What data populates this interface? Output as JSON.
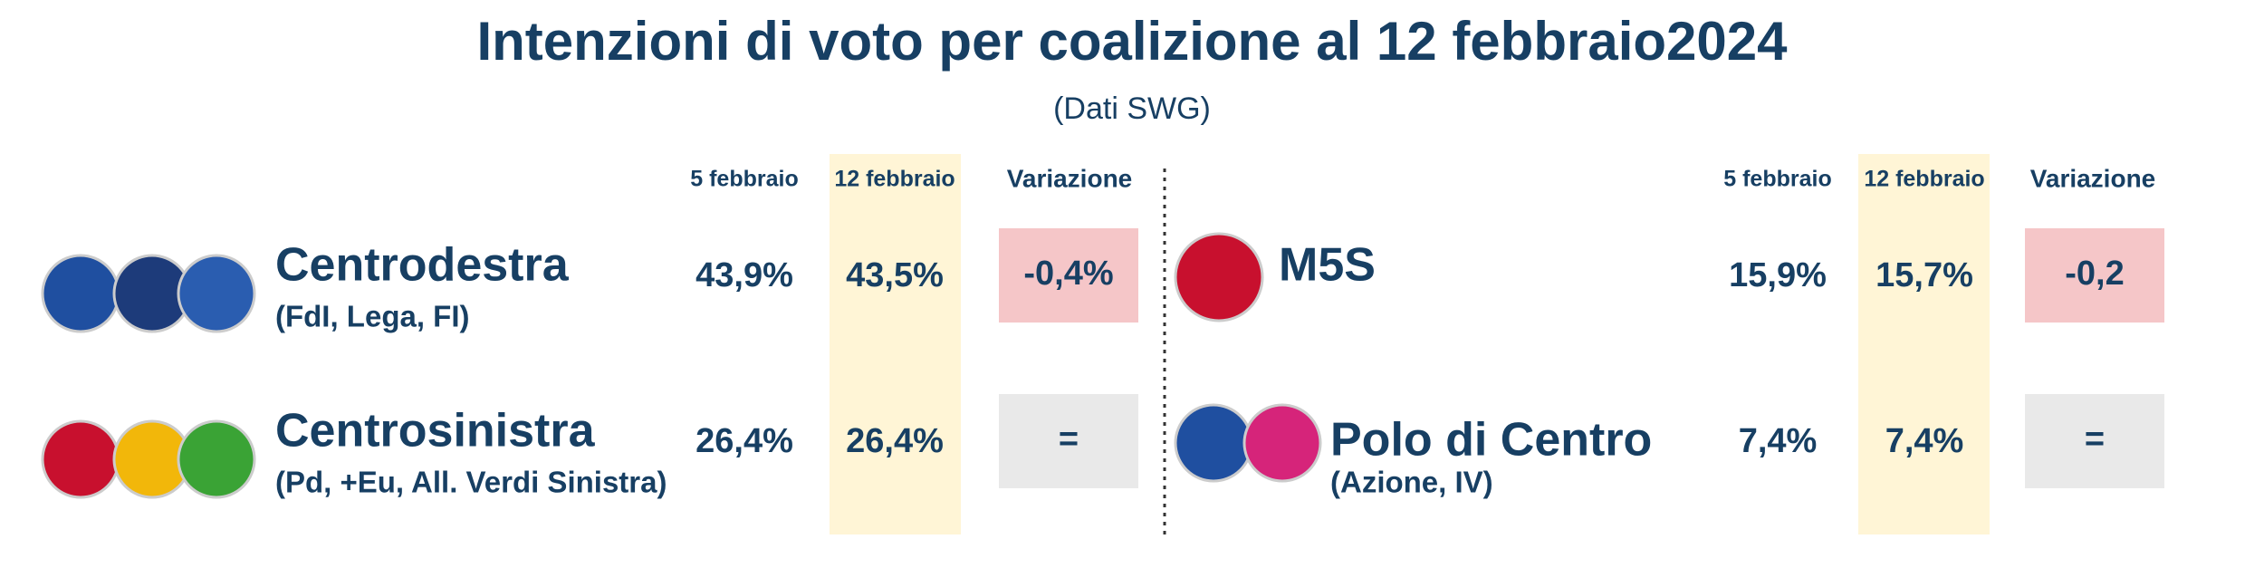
{
  "header": {
    "title": "Intenzioni di voto per coalizione al 12 febbraio2024",
    "subtitle": "(Dati SWG)"
  },
  "panels": [
    {
      "columns": [
        "5 febbraio",
        "12 febbraio",
        "Variazione"
      ],
      "rows": [
        {
          "name": "Centrodestra",
          "detail": "(FdI, Lega, FI)",
          "feb5": "43,9%",
          "feb12": "43,5%",
          "change": "-0,4%"
        },
        {
          "name": "Centrosinistra",
          "detail": "(Pd, +Eu, All. Verdi Sinistra)",
          "feb5": "26,4%",
          "feb12": "26,4%",
          "change": "="
        }
      ]
    },
    {
      "columns": [
        "5 febbraio",
        "12 febbraio",
        "Variazione"
      ],
      "rows": [
        {
          "name": "M5S",
          "feb5": "15,9%",
          "feb12": "15,7%",
          "change": "-0,2"
        },
        {
          "name": "Polo di Centro",
          "detail": "(Azione, IV)",
          "feb5": "7,4%",
          "feb12": "7,4%",
          "change": "="
        }
      ]
    }
  ]
}
